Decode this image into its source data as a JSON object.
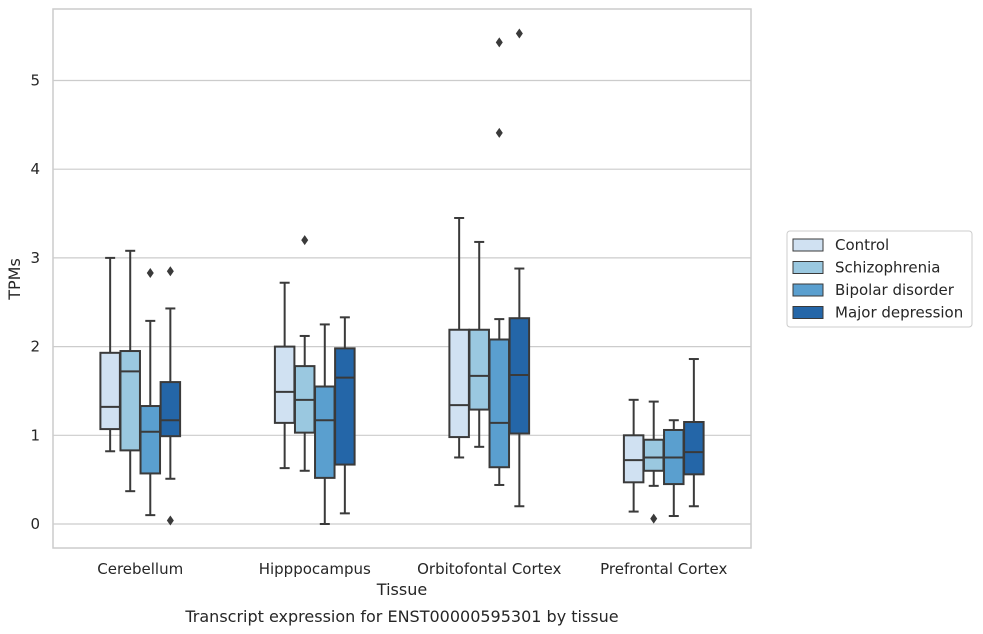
{
  "chart_data": {
    "type": "box",
    "title": "",
    "caption": "Transcript expression for ENST00000595301 by tissue",
    "xlabel": "Tissue",
    "ylabel": "TPMs",
    "ylim": [
      -0.27,
      5.8
    ],
    "yticks": [
      0,
      1,
      2,
      3,
      4,
      5
    ],
    "grid": "horizontal",
    "legend_position": "right",
    "categories": [
      "Cerebellum",
      "Hipppocampus",
      "Orbitofontal Cortex",
      "Prefrontal Cortex"
    ],
    "series": [
      {
        "name": "Control",
        "color": "#d0e1f2",
        "boxes": [
          {
            "whislo": 0.82,
            "q1": 1.07,
            "med": 1.32,
            "q3": 1.93,
            "whishi": 3.0,
            "fliers": []
          },
          {
            "whislo": 0.63,
            "q1": 1.14,
            "med": 1.49,
            "q3": 2.0,
            "whishi": 2.72,
            "fliers": []
          },
          {
            "whislo": 0.75,
            "q1": 0.98,
            "med": 1.34,
            "q3": 2.19,
            "whishi": 3.45,
            "fliers": []
          },
          {
            "whislo": 0.14,
            "q1": 0.47,
            "med": 0.72,
            "q3": 1.0,
            "whishi": 1.4,
            "fliers": []
          }
        ]
      },
      {
        "name": "Schizophrenia",
        "color": "#9ac8e0",
        "boxes": [
          {
            "whislo": 0.37,
            "q1": 0.83,
            "med": 1.72,
            "q3": 1.95,
            "whishi": 3.08,
            "fliers": []
          },
          {
            "whislo": 0.6,
            "q1": 1.03,
            "med": 1.4,
            "q3": 1.78,
            "whishi": 2.12,
            "fliers": [
              3.2
            ]
          },
          {
            "whislo": 0.87,
            "q1": 1.29,
            "med": 1.67,
            "q3": 2.19,
            "whishi": 3.18,
            "fliers": []
          },
          {
            "whislo": 0.43,
            "q1": 0.6,
            "med": 0.75,
            "q3": 0.95,
            "whishi": 1.38,
            "fliers": [
              0.06
            ]
          }
        ]
      },
      {
        "name": "Bipolar disorder",
        "color": "#5a9fcf",
        "boxes": [
          {
            "whislo": 0.1,
            "q1": 0.57,
            "med": 1.04,
            "q3": 1.33,
            "whishi": 2.29,
            "fliers": [
              2.83
            ]
          },
          {
            "whislo": 0.0,
            "q1": 0.52,
            "med": 1.17,
            "q3": 1.55,
            "whishi": 2.25,
            "fliers": []
          },
          {
            "whislo": 0.44,
            "q1": 0.64,
            "med": 1.14,
            "q3": 2.08,
            "whishi": 2.31,
            "fliers": [
              4.41,
              5.43
            ]
          },
          {
            "whislo": 0.09,
            "q1": 0.45,
            "med": 0.75,
            "q3": 1.06,
            "whishi": 1.17,
            "fliers": []
          }
        ]
      },
      {
        "name": "Major depression",
        "color": "#2466a8",
        "boxes": [
          {
            "whislo": 0.51,
            "q1": 0.99,
            "med": 1.17,
            "q3": 1.6,
            "whishi": 2.43,
            "fliers": [
              0.04,
              2.85
            ]
          },
          {
            "whislo": 0.12,
            "q1": 0.67,
            "med": 1.65,
            "q3": 1.98,
            "whishi": 2.33,
            "fliers": []
          },
          {
            "whislo": 0.2,
            "q1": 1.02,
            "med": 1.68,
            "q3": 2.32,
            "whishi": 2.88,
            "fliers": [
              5.53
            ]
          },
          {
            "whislo": 0.2,
            "q1": 0.56,
            "med": 0.81,
            "q3": 1.15,
            "whishi": 1.86,
            "fliers": []
          }
        ]
      }
    ]
  },
  "colors": {
    "outline": "#3a3a3a",
    "grid": "#cccccc",
    "frame": "#cccccc"
  }
}
